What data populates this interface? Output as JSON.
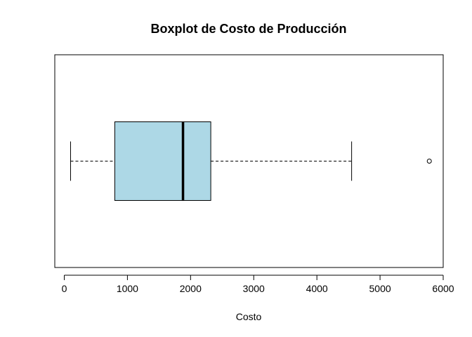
{
  "chart_data": {
    "type": "boxplot",
    "orientation": "horizontal",
    "title": "Boxplot de Costo de Producción",
    "xlabel": "Costo",
    "ylabel": "",
    "xlim": [
      -150,
      6000
    ],
    "ticks": [
      0,
      1000,
      2000,
      3000,
      4000,
      5000,
      6000
    ],
    "tick_labels": [
      "0",
      "1000",
      "2000",
      "3000",
      "4000",
      "5000",
      "6000"
    ],
    "box": {
      "whisker_low": 100,
      "q1": 800,
      "median": 1880,
      "q3": 2320,
      "whisker_high": 4550,
      "outliers": [
        5780
      ]
    },
    "box_color": "#ADD8E6",
    "grid": false
  }
}
